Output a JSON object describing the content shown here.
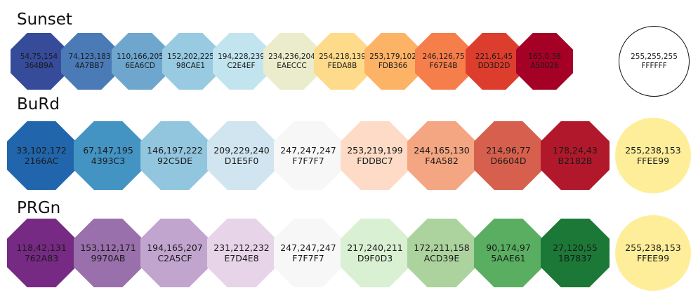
{
  "schemes": [
    {
      "name": "Sunset",
      "swatches": [
        {
          "rgb": "54,75,154",
          "hex": "364B9A",
          "color": "#364B9A"
        },
        {
          "rgb": "74,123,183",
          "hex": "4A7BB7",
          "color": "#4A7BB7"
        },
        {
          "rgb": "110,166,205",
          "hex": "6EA6CD",
          "color": "#6EA6CD"
        },
        {
          "rgb": "152,202,225",
          "hex": "98CAE1",
          "color": "#98CAE1"
        },
        {
          "rgb": "194,228,239",
          "hex": "C2E4EF",
          "color": "#C2E4EF"
        },
        {
          "rgb": "234,236,204",
          "hex": "EAECCC",
          "color": "#EAECCC"
        },
        {
          "rgb": "254,218,139",
          "hex": "FEDA8B",
          "color": "#FEDA8B"
        },
        {
          "rgb": "253,179,102",
          "hex": "FDB366",
          "color": "#FDB366"
        },
        {
          "rgb": "246,126,75",
          "hex": "F67E4B",
          "color": "#F67E4B"
        },
        {
          "rgb": "221,61,45",
          "hex": "DD3D2D",
          "color": "#DD3D2D"
        },
        {
          "rgb": "165,0,38",
          "hex": "A50026",
          "color": "#A50026"
        }
      ],
      "bad": {
        "rgb": "255,255,255",
        "hex": "FFFFFF",
        "color": "#FFFFFF"
      }
    },
    {
      "name": "BuRd",
      "swatches": [
        {
          "rgb": "33,102,172",
          "hex": "2166AC",
          "color": "#2166AC"
        },
        {
          "rgb": "67,147,195",
          "hex": "4393C3",
          "color": "#4393C3"
        },
        {
          "rgb": "146,197,222",
          "hex": "92C5DE",
          "color": "#92C5DE"
        },
        {
          "rgb": "209,229,240",
          "hex": "D1E5F0",
          "color": "#D1E5F0"
        },
        {
          "rgb": "247,247,247",
          "hex": "F7F7F7",
          "color": "#F7F7F7"
        },
        {
          "rgb": "253,219,199",
          "hex": "FDDBC7",
          "color": "#FDDBC7"
        },
        {
          "rgb": "244,165,130",
          "hex": "F4A582",
          "color": "#F4A582"
        },
        {
          "rgb": "214,96,77",
          "hex": "D6604D",
          "color": "#D6604D"
        },
        {
          "rgb": "178,24,43",
          "hex": "B2182B",
          "color": "#B2182B"
        }
      ],
      "bad": {
        "rgb": "255,238,153",
        "hex": "FFEE99",
        "color": "#FFEE99"
      }
    },
    {
      "name": "PRGn",
      "swatches": [
        {
          "rgb": "118,42,131",
          "hex": "762A83",
          "color": "#762A83"
        },
        {
          "rgb": "153,112,171",
          "hex": "9970AB",
          "color": "#9970AB"
        },
        {
          "rgb": "194,165,207",
          "hex": "C2A5CF",
          "color": "#C2A5CF"
        },
        {
          "rgb": "231,212,232",
          "hex": "E7D4E8",
          "color": "#E7D4E8"
        },
        {
          "rgb": "247,247,247",
          "hex": "F7F7F7",
          "color": "#F7F7F7"
        },
        {
          "rgb": "217,240,211",
          "hex": "D9F0D3",
          "color": "#D9F0D3"
        },
        {
          "rgb": "172,211,158",
          "hex": "ACD39E",
          "color": "#ACD39E"
        },
        {
          "rgb": "90,174,97",
          "hex": "5AAE61",
          "color": "#5AAE61"
        },
        {
          "rgb": "27,120,55",
          "hex": "1B7837",
          "color": "#1B7837"
        }
      ],
      "bad": {
        "rgb": "255,238,153",
        "hex": "FFEE99",
        "color": "#FFEE99"
      }
    }
  ]
}
